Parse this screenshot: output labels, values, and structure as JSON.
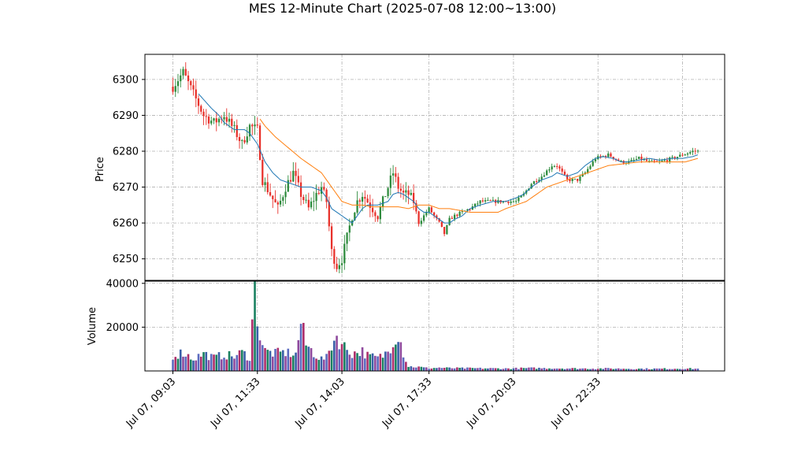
{
  "title": "MES 12-Minute Chart (2025-07-08 12:00~13:00)",
  "chart_data": [
    {
      "type": "candlestick",
      "panel": "price",
      "ylabel": "Price",
      "ylim": [
        6244,
        6307
      ],
      "yticks": [
        6250,
        6260,
        6270,
        6280,
        6290,
        6300
      ],
      "xtick_labels": [
        "Jul 07, 09:03",
        "Jul 07, 11:33",
        "Jul 07, 14:03",
        "Jul 07, 17:33",
        "Jul 07, 20:03",
        "Jul 07, 22:33"
      ],
      "grid": true,
      "colors": {
        "up": "#2e8b3d",
        "down": "#e8312b",
        "ma_short": "#1f77b4",
        "ma_long": "#ff7f0e",
        "grid": "#b0b0b0"
      },
      "close_path": [
        [
          0,
          6298
        ],
        [
          4,
          6302
        ],
        [
          8,
          6296
        ],
        [
          12,
          6290
        ],
        [
          16,
          6288
        ],
        [
          20,
          6290
        ],
        [
          24,
          6286
        ],
        [
          27,
          6282
        ],
        [
          30,
          6287
        ],
        [
          33,
          6286
        ],
        [
          35,
          6272
        ],
        [
          38,
          6268
        ],
        [
          41,
          6264
        ],
        [
          44,
          6270
        ],
        [
          47,
          6274
        ],
        [
          50,
          6268
        ],
        [
          53,
          6264
        ],
        [
          56,
          6268
        ],
        [
          58,
          6270
        ],
        [
          60,
          6266
        ],
        [
          62,
          6252
        ],
        [
          64,
          6248
        ],
        [
          66,
          6250
        ],
        [
          68,
          6256
        ],
        [
          70,
          6262
        ],
        [
          72,
          6266
        ],
        [
          74,
          6268
        ],
        [
          76,
          6266
        ],
        [
          78,
          6264
        ],
        [
          80,
          6262
        ],
        [
          82,
          6266
        ],
        [
          84,
          6270
        ],
        [
          86,
          6274
        ],
        [
          88,
          6270
        ],
        [
          90,
          6268
        ],
        [
          92,
          6268
        ],
        [
          94,
          6266
        ],
        [
          96,
          6260
        ],
        [
          98,
          6262
        ],
        [
          100,
          6264
        ],
        [
          102,
          6262
        ],
        [
          104,
          6260
        ],
        [
          106,
          6257
        ],
        [
          108,
          6261
        ],
        [
          110,
          6262
        ],
        [
          113,
          6263
        ],
        [
          116,
          6264
        ],
        [
          120,
          6266
        ],
        [
          125,
          6266
        ],
        [
          130,
          6266
        ],
        [
          134,
          6266
        ],
        [
          137,
          6268
        ],
        [
          140,
          6271
        ],
        [
          144,
          6273
        ],
        [
          148,
          6276
        ],
        [
          150,
          6276
        ],
        [
          154,
          6272
        ],
        [
          158,
          6272
        ],
        [
          161,
          6274
        ],
        [
          165,
          6278
        ],
        [
          170,
          6279
        ],
        [
          175,
          6277
        ],
        [
          178,
          6277
        ],
        [
          182,
          6278
        ],
        [
          186,
          6277
        ],
        [
          190,
          6277
        ],
        [
          195,
          6278
        ],
        [
          199,
          6279
        ],
        [
          203,
          6280
        ],
        [
          205,
          6280
        ]
      ],
      "ma_short": [
        [
          10,
          6296
        ],
        [
          15,
          6292
        ],
        [
          18,
          6290
        ],
        [
          20,
          6288
        ],
        [
          24,
          6286
        ],
        [
          28,
          6286
        ],
        [
          30,
          6285
        ],
        [
          33,
          6282
        ],
        [
          36,
          6277
        ],
        [
          39,
          6274
        ],
        [
          42,
          6272
        ],
        [
          46,
          6271
        ],
        [
          50,
          6270
        ],
        [
          54,
          6270
        ],
        [
          58,
          6269
        ],
        [
          60,
          6267
        ],
        [
          62,
          6264
        ],
        [
          64,
          6263
        ],
        [
          66,
          6262
        ],
        [
          68,
          6261
        ],
        [
          70,
          6260
        ],
        [
          72,
          6262
        ],
        [
          74,
          6264
        ],
        [
          76,
          6265
        ],
        [
          80,
          6265
        ],
        [
          84,
          6266
        ],
        [
          86,
          6268
        ],
        [
          88,
          6268.5
        ],
        [
          90,
          6268
        ],
        [
          92,
          6267
        ],
        [
          94,
          6266
        ],
        [
          96,
          6264
        ],
        [
          98,
          6263
        ],
        [
          100,
          6263
        ],
        [
          102,
          6262
        ],
        [
          104,
          6261
        ],
        [
          106,
          6260
        ],
        [
          108,
          6260
        ],
        [
          110,
          6261
        ],
        [
          113,
          6262
        ],
        [
          116,
          6264
        ],
        [
          120,
          6265
        ],
        [
          125,
          6266
        ],
        [
          130,
          6266
        ],
        [
          134,
          6267
        ],
        [
          137,
          6268
        ],
        [
          140,
          6270
        ],
        [
          144,
          6272
        ],
        [
          148,
          6273
        ],
        [
          150,
          6274
        ],
        [
          154,
          6273
        ],
        [
          158,
          6274
        ],
        [
          161,
          6276
        ],
        [
          165,
          6278
        ],
        [
          168,
          6278.5
        ],
        [
          172,
          6278
        ],
        [
          175,
          6277
        ],
        [
          178,
          6277
        ],
        [
          182,
          6277.5
        ],
        [
          186,
          6278
        ],
        [
          190,
          6277.5
        ],
        [
          195,
          6278
        ],
        [
          199,
          6278
        ],
        [
          203,
          6278.5
        ],
        [
          205,
          6279
        ]
      ],
      "ma_long": [
        [
          34,
          6289
        ],
        [
          36,
          6287
        ],
        [
          40,
          6284
        ],
        [
          45,
          6281
        ],
        [
          50,
          6278
        ],
        [
          54,
          6276
        ],
        [
          58,
          6274
        ],
        [
          61,
          6271
        ],
        [
          64,
          6268
        ],
        [
          66,
          6266
        ],
        [
          70,
          6265
        ],
        [
          74,
          6265
        ],
        [
          78,
          6264.5
        ],
        [
          82,
          6264.5
        ],
        [
          88,
          6264.5
        ],
        [
          92,
          6264
        ],
        [
          96,
          6265
        ],
        [
          100,
          6265
        ],
        [
          104,
          6264
        ],
        [
          108,
          6264
        ],
        [
          112,
          6263.5
        ],
        [
          116,
          6263
        ],
        [
          120,
          6263
        ],
        [
          124,
          6263
        ],
        [
          127,
          6263
        ],
        [
          130,
          6264
        ],
        [
          134,
          6265
        ],
        [
          138,
          6266
        ],
        [
          142,
          6268
        ],
        [
          146,
          6270
        ],
        [
          150,
          6271
        ],
        [
          154,
          6272
        ],
        [
          158,
          6273
        ],
        [
          162,
          6274
        ],
        [
          166,
          6275
        ],
        [
          170,
          6276
        ],
        [
          176,
          6276.5
        ],
        [
          182,
          6277
        ],
        [
          188,
          6277
        ],
        [
          194,
          6277
        ],
        [
          200,
          6277
        ],
        [
          205,
          6278
        ]
      ]
    },
    {
      "type": "bar",
      "panel": "volume",
      "ylabel": "Volume",
      "ylim": [
        0,
        41000
      ],
      "yticks": [
        20000,
        40000
      ],
      "grid": true,
      "colors": [
        "#5b6abf",
        "#ad2e6b",
        "#1a8060",
        "#3a5fa8",
        "#8f4a9e"
      ],
      "volume_profile": [
        [
          0,
          7000
        ],
        [
          4,
          8500
        ],
        [
          8,
          5500
        ],
        [
          12,
          8000
        ],
        [
          16,
          6000
        ],
        [
          20,
          7500
        ],
        [
          24,
          6500
        ],
        [
          27,
          8500
        ],
        [
          30,
          6000
        ],
        [
          32,
          38000
        ],
        [
          34,
          16000
        ],
        [
          36,
          9000
        ],
        [
          40,
          8000
        ],
        [
          44,
          8500
        ],
        [
          48,
          7500
        ],
        [
          50,
          22000
        ],
        [
          52,
          12000
        ],
        [
          56,
          7000
        ],
        [
          58,
          5500
        ],
        [
          60,
          6000
        ],
        [
          62,
          12000
        ],
        [
          64,
          16000
        ],
        [
          66,
          12000
        ],
        [
          70,
          8000
        ],
        [
          74,
          9000
        ],
        [
          76,
          7000
        ],
        [
          80,
          6000
        ],
        [
          82,
          7000
        ],
        [
          84,
          9000
        ],
        [
          86,
          14000
        ],
        [
          88,
          18000
        ],
        [
          90,
          8000
        ],
        [
          92,
          2000
        ],
        [
          96,
          1800
        ],
        [
          100,
          1200
        ],
        [
          104,
          1500
        ],
        [
          108,
          1300
        ],
        [
          120,
          1200
        ],
        [
          130,
          1100
        ],
        [
          140,
          1300
        ],
        [
          150,
          1200
        ],
        [
          160,
          1100
        ],
        [
          170,
          1100
        ],
        [
          180,
          1000
        ],
        [
          190,
          1000
        ],
        [
          200,
          1100
        ],
        [
          205,
          1000
        ]
      ]
    }
  ]
}
